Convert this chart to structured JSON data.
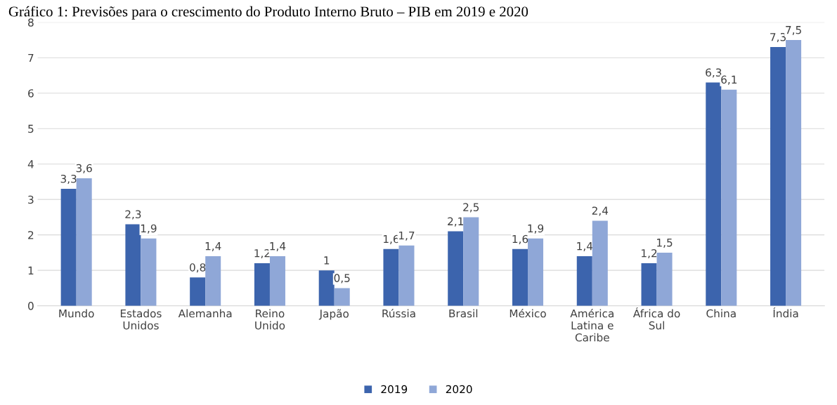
{
  "chart_data": {
    "type": "bar",
    "title": "Gráfico 1: Previsões para o crescimento do Produto Interno Bruto – PIB em 2019 e 2020",
    "categories": [
      "Mundo",
      "Estados Unidos",
      "Alemanha",
      "Reino Unido",
      "Japão",
      "Rússia",
      "Brasil",
      "México",
      "América Latina e Caribe",
      "África do Sul",
      "China",
      "Índia"
    ],
    "series": [
      {
        "name": "2019",
        "color": "#3c64ad",
        "values": [
          3.3,
          2.3,
          0.8,
          1.2,
          1,
          1.6,
          2.1,
          1.6,
          1.4,
          1.2,
          6.3,
          7.3
        ],
        "value_labels": [
          "3,3",
          "2,3",
          "0,8",
          "1,2",
          "1",
          "1,6",
          "2,1",
          "1,6",
          "1,4",
          "1,2",
          "6,3",
          "7,3"
        ]
      },
      {
        "name": "2020",
        "color": "#8fa7d7",
        "values": [
          3.6,
          1.9,
          1.4,
          1.4,
          0.5,
          1.7,
          2.5,
          1.9,
          2.4,
          1.5,
          6.1,
          7.5
        ],
        "value_labels": [
          "3,6",
          "1,9",
          "1,4",
          "1,4",
          "0,5",
          "1,7",
          "2,5",
          "1,9",
          "2,4",
          "1,5",
          "6,1",
          "7,5"
        ]
      }
    ],
    "ylim": [
      0,
      8
    ],
    "yticks": [
      0,
      1,
      2,
      3,
      4,
      5,
      6,
      7,
      8
    ],
    "grid": "y",
    "legend": "bottom"
  }
}
